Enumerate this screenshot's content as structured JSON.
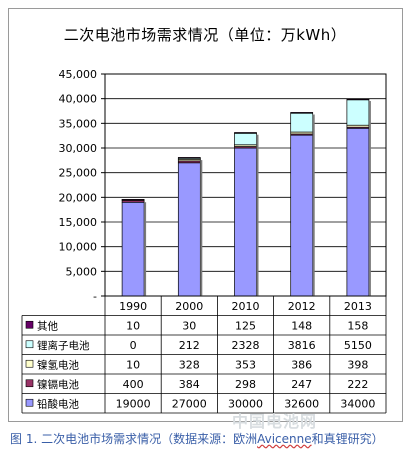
{
  "chart_data": {
    "type": "bar",
    "stacked": true,
    "title": "二次电池市场需求情况（单位：万kWh）",
    "categories": [
      "1990",
      "2000",
      "2010",
      "2012",
      "2013"
    ],
    "ylim": [
      0,
      45000
    ],
    "yticks": [
      "-",
      "5,000",
      "10,000",
      "15,000",
      "20,000",
      "25,000",
      "30,000",
      "35,000",
      "40,000",
      "45,000"
    ],
    "grid": true,
    "legend": "data-table",
    "series": [
      {
        "name": "铅酸电池",
        "values": [
          19000,
          27000,
          30000,
          32600,
          34000
        ],
        "color": "#9999ff"
      },
      {
        "name": "镍镉电池",
        "values": [
          400,
          384,
          298,
          247,
          222
        ],
        "color": "#993366"
      },
      {
        "name": "镍氢电池",
        "values": [
          10,
          328,
          353,
          386,
          398
        ],
        "color": "#ffffcc"
      },
      {
        "name": "锂离子电池",
        "values": [
          0,
          212,
          2328,
          3816,
          5150
        ],
        "color": "#ccffff"
      },
      {
        "name": "其他",
        "values": [
          10,
          30,
          125,
          148,
          158
        ],
        "color": "#660066"
      }
    ],
    "table_rows": [
      {
        "label": "其他",
        "color": "#660066",
        "cells": [
          "10",
          "30",
          "125",
          "148",
          "158"
        ]
      },
      {
        "label": "锂离子电池",
        "color": "#ccffff",
        "cells": [
          "0",
          "212",
          "2328",
          "3816",
          "5150"
        ]
      },
      {
        "label": "镍氢电池",
        "color": "#ffffcc",
        "cells": [
          "10",
          "328",
          "353",
          "386",
          "398"
        ]
      },
      {
        "label": "镍镉电池",
        "color": "#993366",
        "cells": [
          "400",
          "384",
          "298",
          "247",
          "222"
        ]
      },
      {
        "label": "铅酸电池",
        "color": "#9999ff",
        "cells": [
          "19000",
          "27000",
          "30000",
          "32600",
          "34000"
        ]
      }
    ]
  },
  "caption": {
    "prefix": "图 1. 二次电池市场需求情况（数据来源：欧洲",
    "wavy": "Avicenne",
    "suffix": "和真锂研究）"
  },
  "watermark": "中国电池网"
}
